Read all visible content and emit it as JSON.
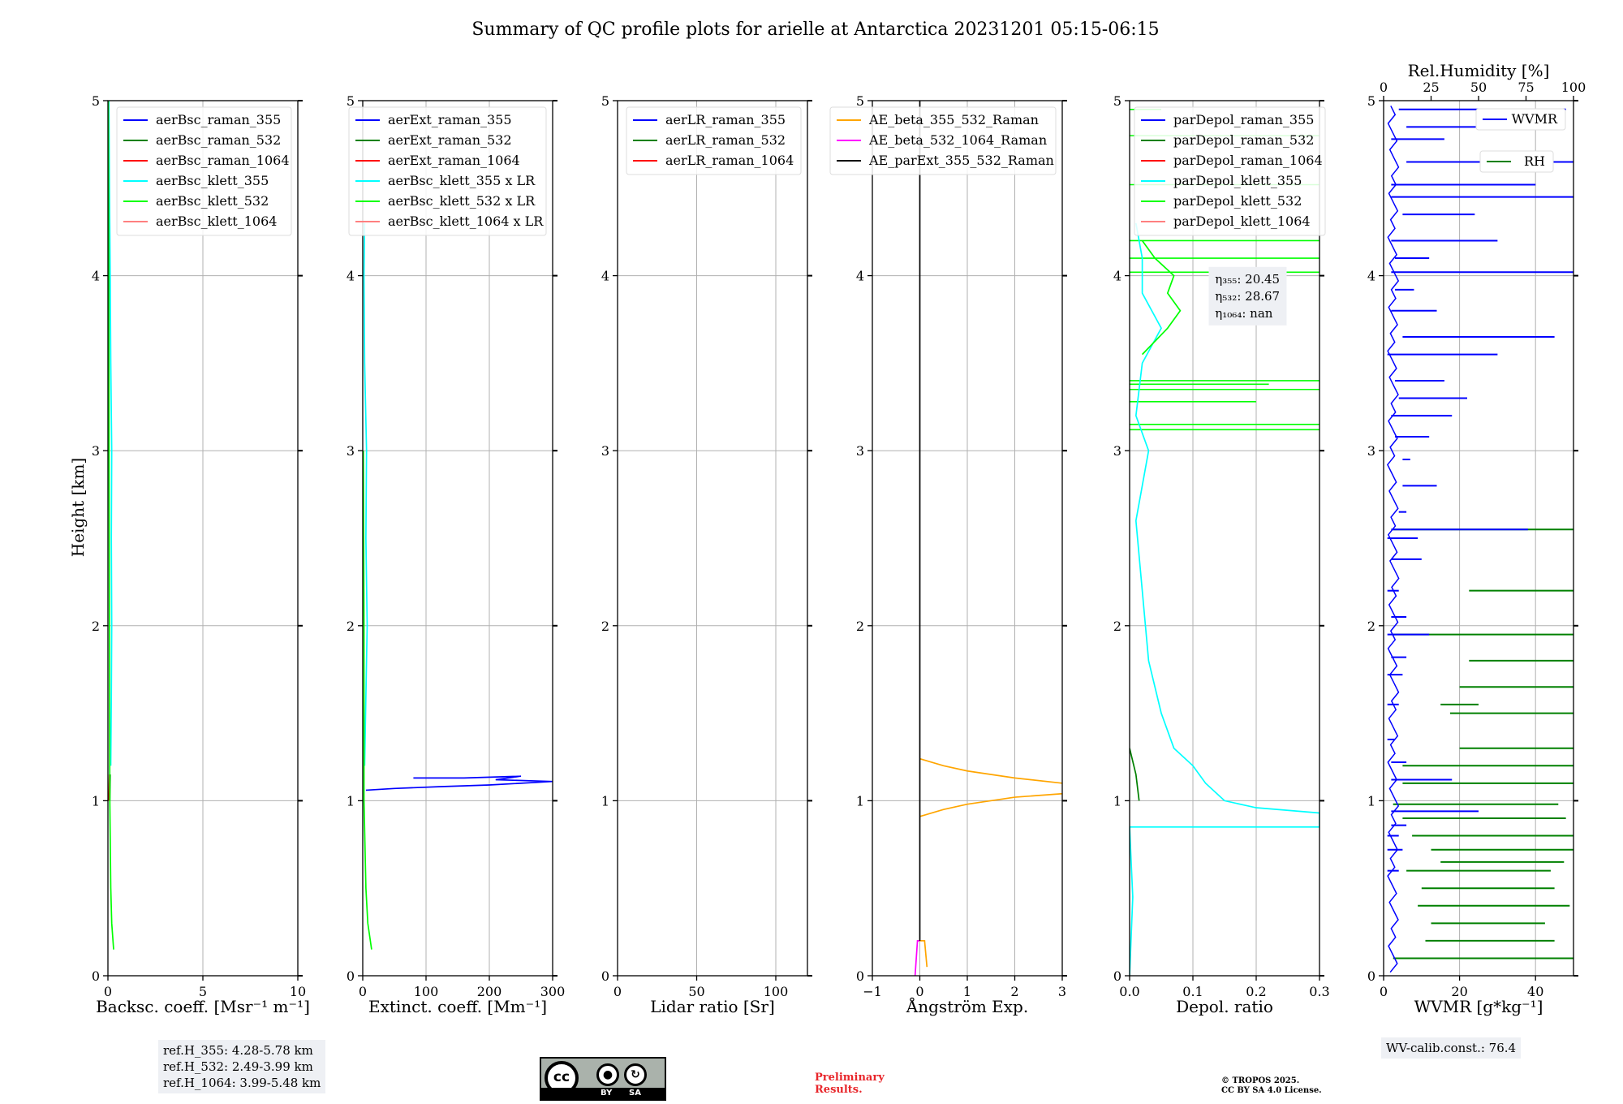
{
  "title": "Summary of QC profile plots for arielle at Antarctica 20231201 05:15-06:15",
  "ylabel": "Height [km]",
  "colors": {
    "blue": "#0000ff",
    "green": "#008000",
    "red": "#ff0000",
    "cyan": "#00ffff",
    "lime": "#00ff00",
    "pink": "#ff8080",
    "orange": "#ffa500",
    "magenta": "#ff00ff",
    "black": "#000000",
    "grid": "#b0b0b0"
  },
  "chart_data": [
    {
      "type": "line",
      "name": "backscatter",
      "xlabel": "Backsc. coeff. [Msr⁻¹ m⁻¹]",
      "xlim": [
        0,
        10
      ],
      "ylim": [
        0,
        5
      ],
      "xticks": [
        0,
        5,
        10
      ],
      "yticks": [
        0,
        1,
        2,
        3,
        4,
        5
      ],
      "legend": "top-right",
      "series": [
        {
          "name": "aerBsc_raman_355",
          "color": "blue",
          "points": []
        },
        {
          "name": "aerBsc_raman_532",
          "color": "green",
          "points": [
            [
              0.1,
              1.0
            ],
            [
              0.12,
              1.15
            ]
          ]
        },
        {
          "name": "aerBsc_raman_1064",
          "color": "red",
          "points": [
            [
              0.05,
              1.0
            ],
            [
              0.08,
              1.15
            ]
          ]
        },
        {
          "name": "aerBsc_klett_355",
          "color": "cyan",
          "points": [
            [
              0.15,
              1.2
            ],
            [
              0.18,
              1.6
            ],
            [
              0.2,
              2.0
            ],
            [
              0.18,
              2.5
            ],
            [
              0.2,
              3.0
            ],
            [
              0.15,
              3.5
            ],
            [
              0.12,
              4.0
            ],
            [
              0.08,
              4.5
            ],
            [
              0.05,
              5.0
            ]
          ]
        },
        {
          "name": "aerBsc_klett_532",
          "color": "lime",
          "points": [
            [
              0.3,
              0.15
            ],
            [
              0.2,
              0.3
            ],
            [
              0.15,
              0.5
            ],
            [
              0.1,
              1.0
            ],
            [
              0.08,
              2.0
            ],
            [
              0.06,
              3.0
            ],
            [
              0.05,
              4.0
            ],
            [
              0.02,
              5.0
            ]
          ]
        },
        {
          "name": "aerBsc_klett_1064",
          "color": "pink",
          "points": []
        }
      ]
    },
    {
      "type": "line",
      "name": "extinction",
      "xlabel": "Extinct. coeff. [Mm⁻¹]",
      "xlim": [
        0,
        300
      ],
      "ylim": [
        0,
        5
      ],
      "xticks": [
        0,
        100,
        200,
        300
      ],
      "yticks": [
        0,
        1,
        2,
        3,
        4,
        5
      ],
      "legend": "top-right",
      "series": [
        {
          "name": "aerExt_raman_355",
          "color": "blue",
          "points": [
            [
              5,
              1.06
            ],
            [
              50,
              1.07
            ],
            [
              120,
              1.08
            ],
            [
              200,
              1.09
            ],
            [
              300,
              1.11
            ],
            [
              210,
              1.12
            ],
            [
              250,
              1.14
            ],
            [
              160,
              1.13
            ],
            [
              80,
              1.13
            ]
          ]
        },
        {
          "name": "aerExt_raman_532",
          "color": "green",
          "points": []
        },
        {
          "name": "aerExt_raman_1064",
          "color": "red",
          "points": []
        },
        {
          "name": "aerBsc_klett_355 x LR",
          "color": "cyan",
          "points": [
            [
              3,
              1.2
            ],
            [
              5,
              1.6
            ],
            [
              7,
              2.0
            ],
            [
              5,
              2.5
            ],
            [
              6,
              3.0
            ],
            [
              3,
              3.5
            ],
            [
              2,
              4.0
            ],
            [
              3,
              4.3
            ]
          ]
        },
        {
          "name": "aerBsc_klett_532 x LR",
          "color": "lime",
          "points": [
            [
              14,
              0.15
            ],
            [
              8,
              0.3
            ],
            [
              5,
              0.5
            ],
            [
              2,
              1.0
            ],
            [
              2,
              2.0
            ],
            [
              1,
              3.0
            ]
          ]
        },
        {
          "name": "aerBsc_klett_1064 x LR",
          "color": "pink",
          "points": []
        }
      ]
    },
    {
      "type": "line",
      "name": "lidar_ratio",
      "xlabel": "Lidar ratio [Sr]",
      "xlim": [
        0,
        120
      ],
      "ylim": [
        0,
        5
      ],
      "xticks": [
        0,
        50,
        100
      ],
      "yticks": [
        0,
        1,
        2,
        3,
        4,
        5
      ],
      "legend": "top-right",
      "series": [
        {
          "name": "aerLR_raman_355",
          "color": "blue",
          "points": []
        },
        {
          "name": "aerLR_raman_532",
          "color": "green",
          "points": []
        },
        {
          "name": "aerLR_raman_1064",
          "color": "red",
          "points": []
        }
      ]
    },
    {
      "type": "line",
      "name": "angstrom",
      "xlabel": "Ångström Exp.",
      "xlim": [
        -1,
        3
      ],
      "ylim": [
        0,
        5
      ],
      "xticks": [
        -1,
        0,
        1,
        2,
        3
      ],
      "yticks": [
        0,
        1,
        2,
        3,
        4,
        5
      ],
      "legend": "top-right",
      "series": [
        {
          "name": "AE_beta_355_532_Raman",
          "color": "orange",
          "points": [
            [
              0,
              1.24
            ],
            [
              0.5,
              1.2
            ],
            [
              1,
              1.17
            ],
            [
              2,
              1.13
            ],
            [
              3,
              1.1
            ]
          ]
        },
        {
          "name": "AE_beta_355_532_Raman (lower)",
          "color": "orange",
          "hideLegend": true,
          "points": [
            [
              0,
              0.91
            ],
            [
              0.5,
              0.95
            ],
            [
              1,
              0.98
            ],
            [
              2,
              1.02
            ],
            [
              3,
              1.04
            ]
          ]
        },
        {
          "name": "AE_beta_355_532_Raman (bottom)",
          "color": "orange",
          "hideLegend": true,
          "points": [
            [
              0.15,
              0.05
            ],
            [
              0.1,
              0.2
            ],
            [
              -0.05,
              0.2
            ]
          ]
        },
        {
          "name": "AE_beta_532_1064_Raman",
          "color": "magenta",
          "points": [
            [
              -0.1,
              0.0
            ],
            [
              -0.05,
              0.2
            ],
            [
              0.0,
              0.2
            ]
          ]
        },
        {
          "name": "AE_parExt_355_532_Raman",
          "color": "black",
          "points": [
            [
              0,
              0.2
            ],
            [
              0,
              5.0
            ]
          ]
        }
      ]
    },
    {
      "type": "line",
      "name": "depol",
      "xlabel": "Depol. ratio",
      "xlim": [
        0,
        0.3
      ],
      "ylim": [
        0,
        5
      ],
      "xticks": [
        0.0,
        0.1,
        0.2,
        0.3
      ],
      "yticks": [
        0,
        1,
        2,
        3,
        4,
        5
      ],
      "legend": "top-left",
      "annotation": [
        "η₃₅₅: 20.45",
        "η₅₃₂: 28.67",
        "η₁₀₆₄: nan"
      ],
      "series": [
        {
          "name": "parDepol_raman_355",
          "color": "blue",
          "points": []
        },
        {
          "name": "parDepol_raman_532",
          "color": "green",
          "points": [
            [
              0.015,
              1.0
            ],
            [
              0.01,
              1.15
            ],
            [
              0.0,
              1.3
            ]
          ]
        },
        {
          "name": "parDepol_raman_1064",
          "color": "red",
          "points": []
        },
        {
          "name": "parDepol_klett_355",
          "color": "cyan",
          "points": [
            [
              0.0,
              0.0
            ],
            [
              0.005,
              0.45
            ],
            [
              0.0,
              0.85
            ],
            [
              0.3,
              0.85
            ],
            [
              0.3,
              0.93
            ],
            [
              0.2,
              0.96
            ],
            [
              0.15,
              1.0
            ],
            [
              0.12,
              1.1
            ],
            [
              0.1,
              1.2
            ],
            [
              0.07,
              1.3
            ],
            [
              0.05,
              1.5
            ],
            [
              0.03,
              1.8
            ],
            [
              0.02,
              2.2
            ],
            [
              0.01,
              2.6
            ],
            [
              0.03,
              3.0
            ],
            [
              0.01,
              3.2
            ],
            [
              0.02,
              3.5
            ],
            [
              0.05,
              3.7
            ],
            [
              0.02,
              3.9
            ],
            [
              0.02,
              4.1
            ],
            [
              0.01,
              4.3
            ]
          ]
        },
        {
          "name": "parDepol_klett_532",
          "color": "lime",
          "points": [
            [
              0.02,
              3.55
            ],
            [
              0.06,
              3.7
            ],
            [
              0.08,
              3.8
            ],
            [
              0.06,
              3.9
            ],
            [
              0.07,
              4.0
            ],
            [
              0.04,
              4.1
            ],
            [
              0.02,
              4.2
            ]
          ]
        },
        {
          "name": "parDepol_klett_1064",
          "color": "pink",
          "points": []
        }
      ],
      "spikes": {
        "color": "lime",
        "series": "parDepol_klett_532",
        "heights": [
          3.12,
          3.15,
          3.28,
          3.35,
          3.38,
          3.4,
          4.02,
          4.1,
          4.2,
          4.52,
          4.8,
          4.95
        ],
        "lengths": [
          0.3,
          0.3,
          0.2,
          0.3,
          0.22,
          0.3,
          0.3,
          0.3,
          0.3,
          0.3,
          0.3,
          0.05
        ]
      }
    },
    {
      "type": "line",
      "name": "wvmr",
      "xlabel": "WVMR [g*kg⁻¹]",
      "x2label": "Rel.Humidity [%]",
      "xlim": [
        0,
        50
      ],
      "ylim": [
        0,
        5
      ],
      "xticks": [
        0,
        20,
        40
      ],
      "x2lim": [
        0,
        100
      ],
      "x2ticks": [
        0,
        25,
        50,
        75,
        100
      ],
      "yticks": [
        0,
        1,
        2,
        3,
        4,
        5
      ],
      "legend": "top-right",
      "series": [
        {
          "name": "WVMR",
          "color": "blue",
          "points": []
        },
        {
          "name": "RH",
          "color": "green",
          "points": []
        }
      ],
      "wvmr_segments": [
        [
          0.94,
          2,
          25
        ],
        [
          0.86,
          2,
          6
        ],
        [
          0.8,
          1,
          4
        ],
        [
          0.72,
          1,
          5
        ],
        [
          0.6,
          1,
          4
        ],
        [
          1.12,
          2,
          18
        ],
        [
          1.22,
          2,
          6
        ],
        [
          1.35,
          1,
          3
        ],
        [
          1.55,
          1,
          4
        ],
        [
          1.72,
          1,
          5
        ],
        [
          1.82,
          2,
          6
        ],
        [
          1.95,
          1,
          12
        ],
        [
          2.05,
          2,
          6
        ],
        [
          2.2,
          1,
          4
        ],
        [
          2.38,
          2,
          10
        ],
        [
          2.5,
          1,
          9
        ],
        [
          2.55,
          2,
          38
        ],
        [
          2.65,
          4,
          6
        ],
        [
          2.8,
          5,
          14
        ],
        [
          2.95,
          5,
          7
        ],
        [
          3.08,
          3,
          12
        ],
        [
          3.2,
          2,
          18
        ],
        [
          3.3,
          4,
          22
        ],
        [
          3.4,
          3,
          16
        ],
        [
          3.55,
          1,
          30
        ],
        [
          3.65,
          5,
          45
        ],
        [
          3.8,
          2,
          14
        ],
        [
          3.92,
          3,
          8
        ],
        [
          4.02,
          2,
          50
        ],
        [
          4.1,
          3,
          12
        ],
        [
          4.2,
          2,
          30
        ],
        [
          4.35,
          5,
          24
        ],
        [
          4.45,
          2,
          50
        ],
        [
          4.52,
          2,
          40
        ],
        [
          4.65,
          6,
          50
        ],
        [
          4.78,
          2,
          16
        ],
        [
          4.85,
          6,
          34
        ],
        [
          4.95,
          4,
          48
        ]
      ],
      "rh_segments": [
        [
          0.1,
          5,
          100
        ],
        [
          0.2,
          22,
          90
        ],
        [
          0.3,
          25,
          85
        ],
        [
          0.4,
          18,
          98
        ],
        [
          0.5,
          20,
          90
        ],
        [
          0.6,
          12,
          88
        ],
        [
          0.65,
          30,
          95
        ],
        [
          0.72,
          25,
          100
        ],
        [
          0.8,
          15,
          100
        ],
        [
          0.9,
          10,
          96
        ],
        [
          0.98,
          5,
          92
        ],
        [
          1.1,
          10,
          100
        ],
        [
          1.2,
          10,
          100
        ],
        [
          1.3,
          40,
          100
        ],
        [
          1.5,
          35,
          100
        ],
        [
          1.55,
          30,
          50
        ],
        [
          1.65,
          40,
          100
        ],
        [
          1.8,
          45,
          100
        ],
        [
          1.95,
          5,
          100
        ],
        [
          2.2,
          45,
          100
        ],
        [
          2.55,
          5,
          100
        ]
      ]
    }
  ],
  "notes": {
    "ref_heights": [
      "ref.H_355: 4.28-5.78 km",
      "ref.H_532: 2.49-3.99 km",
      "ref.H_1064: 3.99-5.48 km"
    ],
    "wv_calib": "WV-calib.const.: 76.4",
    "prelim": [
      "Preliminary",
      "Results."
    ],
    "copyright": [
      "© TROPOS 2025.",
      "CC BY SA 4.0 License."
    ],
    "cc_labels": {
      "cc": "cc",
      "by": "BY",
      "sa": "SA"
    }
  }
}
